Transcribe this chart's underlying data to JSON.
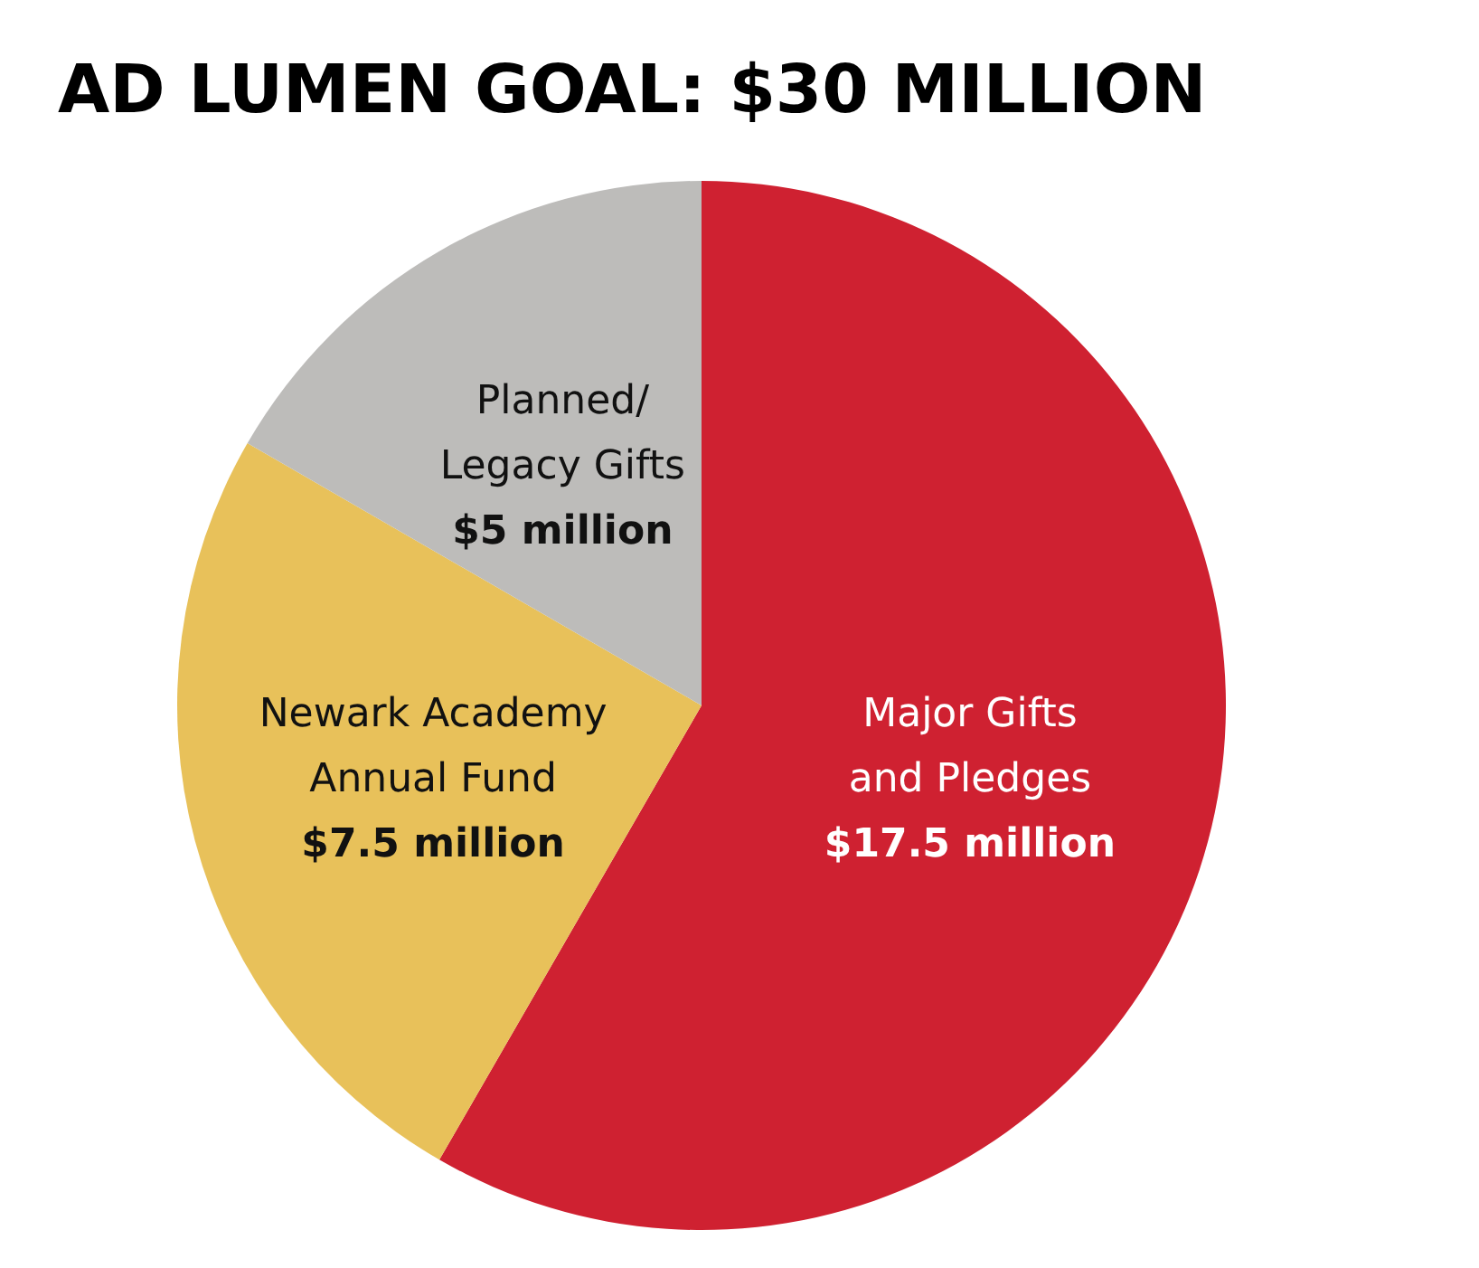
{
  "chart_data": {
    "type": "pie",
    "title": "AD LUMEN GOAL: $30 MILLION",
    "categories": [
      "Major Gifts and Pledges",
      "Newark Academy Annual Fund",
      "Planned/Legacy Gifts"
    ],
    "values": [
      17.5,
      7.5,
      5
    ],
    "colors": [
      "#cf2131",
      "#e8c15a",
      "#bdbcba"
    ],
    "value_labels": [
      "$17.5 million",
      "$7.5 million",
      "$5 million"
    ]
  }
}
